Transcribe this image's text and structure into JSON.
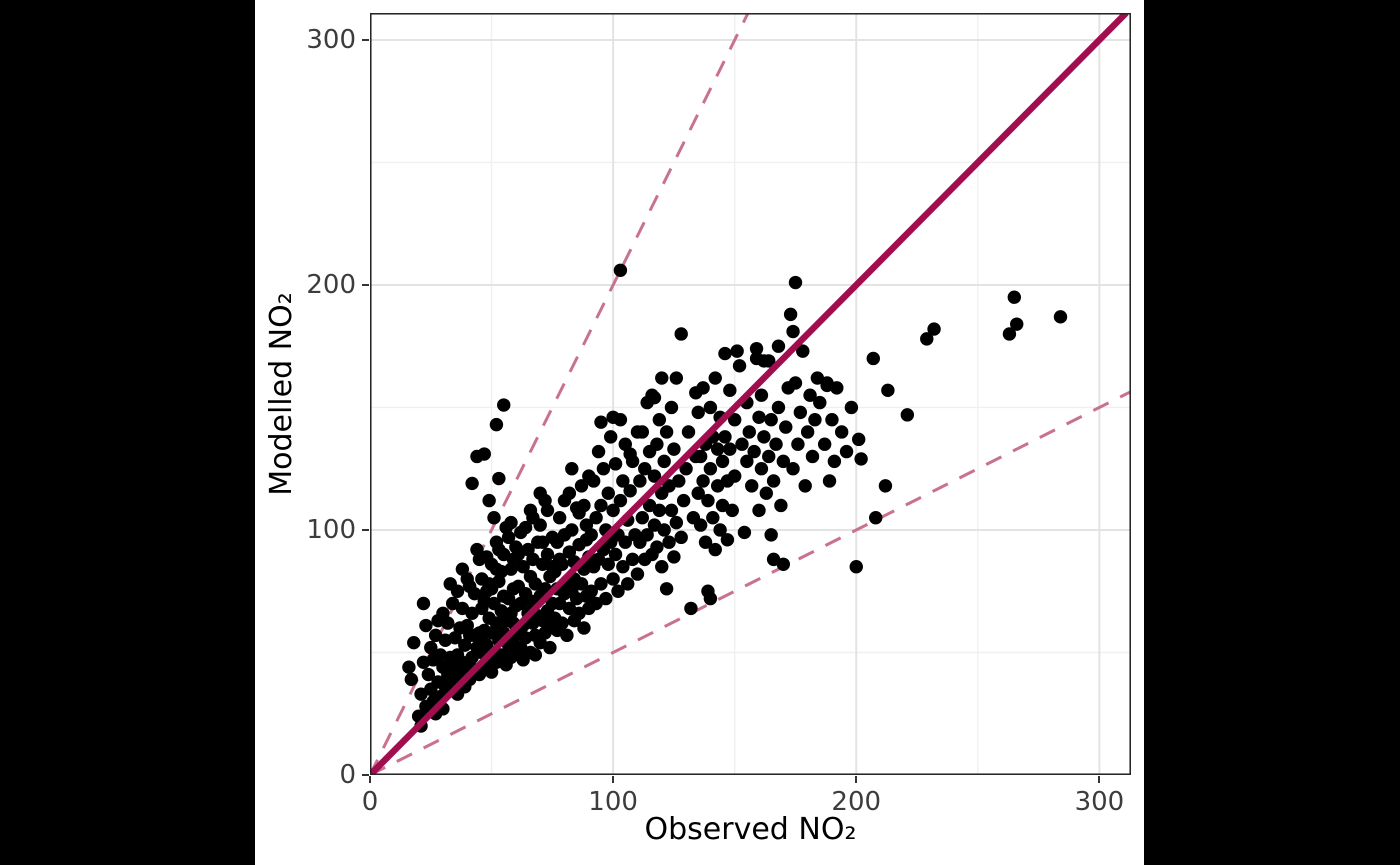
{
  "chart_data": {
    "type": "scatter",
    "title": "",
    "xlabel": "Observed NO₂",
    "ylabel": "Modelled NO₂",
    "xlim": [
      0,
      313
    ],
    "ylim": [
      0,
      311
    ],
    "x_ticks": [
      "0",
      "100",
      "200",
      "300"
    ],
    "x_tick_values": [
      0,
      100,
      200,
      300
    ],
    "y_ticks": [
      "0",
      "100",
      "200",
      "300"
    ],
    "y_tick_values": [
      0,
      100,
      200,
      300
    ],
    "minor_grid_values": [
      50,
      150,
      250
    ],
    "grid": true,
    "legend": "none",
    "point_color": "#000000",
    "point_radius": 6.7,
    "reference_lines": [
      {
        "name": "two-to-one",
        "slope": 2,
        "style": "dashed",
        "color": "#C9728F",
        "width": 3,
        "dash": [
          17,
          13
        ]
      },
      {
        "name": "one-to-two",
        "slope": 0.5,
        "style": "dashed",
        "color": "#C9728F",
        "width": 3,
        "dash": [
          17,
          13
        ]
      },
      {
        "name": "one-to-one",
        "slope": 1,
        "style": "solid",
        "color": "#A10D4F",
        "width": 6.5,
        "dash": null
      }
    ],
    "points": [
      [
        265,
        195
      ],
      [
        266,
        184
      ],
      [
        263,
        180
      ],
      [
        284,
        187
      ],
      [
        232,
        182
      ],
      [
        229,
        178
      ],
      [
        207,
        170
      ],
      [
        213,
        157
      ],
      [
        221,
        147
      ],
      [
        201,
        137
      ],
      [
        202,
        129
      ],
      [
        212,
        118
      ],
      [
        208,
        105
      ],
      [
        200,
        85
      ],
      [
        175,
        201
      ],
      [
        173,
        188
      ],
      [
        174,
        181
      ],
      [
        128,
        180
      ],
      [
        103,
        206
      ],
      [
        120,
        162
      ],
      [
        117,
        154
      ],
      [
        126,
        162
      ],
      [
        134,
        156
      ],
      [
        151,
        173
      ],
      [
        159,
        174
      ],
      [
        152,
        167
      ],
      [
        162,
        169
      ],
      [
        178,
        173
      ],
      [
        184,
        162
      ],
      [
        188,
        159
      ],
      [
        55,
        151
      ],
      [
        52,
        143
      ],
      [
        44,
        130
      ],
      [
        42,
        119
      ],
      [
        53,
        121
      ],
      [
        47,
        131
      ],
      [
        49,
        112
      ],
      [
        16,
        44
      ],
      [
        17,
        39
      ],
      [
        18,
        54
      ],
      [
        20,
        24
      ],
      [
        21,
        20
      ],
      [
        21,
        33
      ],
      [
        22,
        46
      ],
      [
        22,
        70
      ],
      [
        23,
        28
      ],
      [
        23,
        61
      ],
      [
        24,
        26
      ],
      [
        24,
        41
      ],
      [
        25,
        35
      ],
      [
        25,
        52
      ],
      [
        26,
        30
      ],
      [
        26,
        47
      ],
      [
        27,
        25
      ],
      [
        27,
        57
      ],
      [
        28,
        38
      ],
      [
        28,
        63
      ],
      [
        29,
        32
      ],
      [
        29,
        49
      ],
      [
        30,
        27
      ],
      [
        30,
        44
      ],
      [
        30,
        66
      ],
      [
        31,
        36
      ],
      [
        31,
        55
      ],
      [
        32,
        41
      ],
      [
        32,
        62
      ],
      [
        33,
        35
      ],
      [
        33,
        48
      ],
      [
        33,
        78
      ],
      [
        34,
        44
      ],
      [
        34,
        70
      ],
      [
        35,
        38
      ],
      [
        35,
        56
      ],
      [
        36,
        33
      ],
      [
        36,
        49
      ],
      [
        36,
        75
      ],
      [
        37,
        42
      ],
      [
        37,
        60
      ],
      [
        38,
        46
      ],
      [
        38,
        68
      ],
      [
        38,
        84
      ],
      [
        39,
        36
      ],
      [
        39,
        53
      ],
      [
        40,
        44
      ],
      [
        40,
        61
      ],
      [
        40,
        80
      ],
      [
        41,
        39
      ],
      [
        41,
        57
      ],
      [
        41,
        77
      ],
      [
        42,
        48
      ],
      [
        42,
        66
      ],
      [
        43,
        43
      ],
      [
        43,
        57
      ],
      [
        43,
        74
      ],
      [
        44,
        52
      ],
      [
        44,
        92
      ],
      [
        45,
        41
      ],
      [
        45,
        58
      ],
      [
        45,
        88
      ],
      [
        46,
        50
      ],
      [
        46,
        57
      ],
      [
        46,
        68
      ],
      [
        46,
        80
      ],
      [
        47,
        44
      ],
      [
        47,
        59
      ],
      [
        47,
        71
      ],
      [
        48,
        53
      ],
      [
        48,
        75
      ],
      [
        48,
        89
      ],
      [
        49,
        47
      ],
      [
        49,
        64
      ],
      [
        49,
        78
      ],
      [
        50,
        42
      ],
      [
        50,
        58
      ],
      [
        50,
        76
      ],
      [
        50,
        86
      ],
      [
        51,
        50
      ],
      [
        51,
        70
      ],
      [
        51,
        105
      ],
      [
        52,
        46
      ],
      [
        52,
        62
      ],
      [
        52,
        84
      ],
      [
        52,
        95
      ],
      [
        53,
        55
      ],
      [
        53,
        79
      ],
      [
        53,
        92
      ],
      [
        54,
        49
      ],
      [
        54,
        67
      ],
      [
        54,
        83
      ],
      [
        55,
        58
      ],
      [
        55,
        73
      ],
      [
        55,
        90
      ],
      [
        56,
        45
      ],
      [
        56,
        63
      ],
      [
        56,
        101
      ],
      [
        57,
        53
      ],
      [
        57,
        72
      ],
      [
        57,
        97
      ],
      [
        58,
        48
      ],
      [
        58,
        66
      ],
      [
        58,
        84
      ],
      [
        58,
        103
      ],
      [
        59,
        56
      ],
      [
        59,
        62
      ],
      [
        59,
        76
      ],
      [
        59,
        88
      ],
      [
        60,
        51
      ],
      [
        60,
        69
      ],
      [
        60,
        93
      ],
      [
        61,
        58
      ],
      [
        61,
        77
      ],
      [
        61,
        90
      ],
      [
        62,
        52
      ],
      [
        62,
        70
      ],
      [
        62,
        99
      ],
      [
        63,
        47
      ],
      [
        63,
        61
      ],
      [
        63,
        85
      ],
      [
        64,
        56
      ],
      [
        64,
        74
      ],
      [
        64,
        101
      ],
      [
        65,
        66
      ],
      [
        65,
        92
      ],
      [
        66,
        50
      ],
      [
        66,
        71
      ],
      [
        66,
        81
      ],
      [
        66,
        108
      ],
      [
        67,
        62
      ],
      [
        67,
        88
      ],
      [
        67,
        105
      ],
      [
        68,
        49
      ],
      [
        68,
        57
      ],
      [
        68,
        78
      ],
      [
        69,
        65
      ],
      [
        69,
        95
      ],
      [
        70,
        54
      ],
      [
        70,
        73
      ],
      [
        70,
        102
      ],
      [
        70,
        115
      ],
      [
        71,
        63
      ],
      [
        71,
        86
      ],
      [
        71,
        95
      ],
      [
        72,
        58
      ],
      [
        72,
        76
      ],
      [
        72,
        112
      ],
      [
        73,
        67
      ],
      [
        73,
        90
      ],
      [
        73,
        108
      ],
      [
        74,
        52
      ],
      [
        74,
        61
      ],
      [
        74,
        81
      ],
      [
        75,
        70
      ],
      [
        75,
        85
      ],
      [
        75,
        97
      ],
      [
        76,
        64
      ],
      [
        76,
        83
      ],
      [
        77,
        59
      ],
      [
        77,
        76
      ],
      [
        77,
        95
      ],
      [
        78,
        70
      ],
      [
        78,
        88
      ],
      [
        78,
        105
      ],
      [
        79,
        62
      ],
      [
        79,
        86
      ],
      [
        80,
        74
      ],
      [
        80,
        98
      ],
      [
        80,
        112
      ],
      [
        81,
        57
      ],
      [
        81,
        79
      ],
      [
        82,
        68
      ],
      [
        82,
        91
      ],
      [
        82,
        115
      ],
      [
        83,
        75
      ],
      [
        83,
        100
      ],
      [
        83,
        125
      ],
      [
        84,
        63
      ],
      [
        84,
        80
      ],
      [
        84,
        87
      ],
      [
        85,
        72
      ],
      [
        85,
        109
      ],
      [
        86,
        66
      ],
      [
        86,
        94
      ],
      [
        86,
        107
      ],
      [
        87,
        78
      ],
      [
        87,
        118
      ],
      [
        88,
        60
      ],
      [
        88,
        84
      ],
      [
        88,
        110
      ],
      [
        89,
        73
      ],
      [
        89,
        96
      ],
      [
        89,
        102
      ],
      [
        90,
        68
      ],
      [
        90,
        89
      ],
      [
        90,
        122
      ],
      [
        91,
        75
      ],
      [
        91,
        98
      ],
      [
        92,
        85
      ],
      [
        92,
        120
      ],
      [
        93,
        70
      ],
      [
        93,
        105
      ],
      [
        94,
        88
      ],
      [
        94,
        132
      ],
      [
        95,
        78
      ],
      [
        95,
        110
      ],
      [
        95,
        144
      ],
      [
        96,
        92
      ],
      [
        96,
        125
      ],
      [
        97,
        72
      ],
      [
        97,
        100
      ],
      [
        98,
        86
      ],
      [
        98,
        115
      ],
      [
        99,
        95
      ],
      [
        99,
        138
      ],
      [
        100,
        80
      ],
      [
        100,
        108
      ],
      [
        100,
        146
      ],
      [
        101,
        90
      ],
      [
        101,
        127
      ],
      [
        102,
        75
      ],
      [
        102,
        98
      ],
      [
        103,
        112
      ],
      [
        103,
        145
      ],
      [
        104,
        85
      ],
      [
        104,
        120
      ],
      [
        105,
        95
      ],
      [
        105,
        135
      ],
      [
        106,
        78
      ],
      [
        106,
        104
      ],
      [
        107,
        116
      ],
      [
        107,
        131
      ],
      [
        108,
        88
      ],
      [
        108,
        128
      ],
      [
        109,
        98
      ],
      [
        110,
        82
      ],
      [
        110,
        140
      ],
      [
        111,
        95
      ],
      [
        111,
        120
      ],
      [
        112,
        105
      ],
      [
        112,
        140
      ],
      [
        113,
        88
      ],
      [
        113,
        125
      ],
      [
        114,
        98
      ],
      [
        114,
        152
      ],
      [
        115,
        110
      ],
      [
        115,
        132
      ],
      [
        116,
        90
      ],
      [
        116,
        155
      ],
      [
        117,
        102
      ],
      [
        117,
        122
      ],
      [
        118,
        93
      ],
      [
        118,
        135
      ],
      [
        119,
        108
      ],
      [
        119,
        145
      ],
      [
        120,
        85
      ],
      [
        120,
        115
      ],
      [
        121,
        100
      ],
      [
        121,
        128
      ],
      [
        122,
        76
      ],
      [
        122,
        140
      ],
      [
        123,
        95
      ],
      [
        123,
        118
      ],
      [
        124,
        108
      ],
      [
        124,
        150
      ],
      [
        125,
        89
      ],
      [
        125,
        133
      ],
      [
        126,
        103
      ],
      [
        127,
        120
      ],
      [
        128,
        97
      ],
      [
        129,
        112
      ],
      [
        130,
        125
      ],
      [
        131,
        140
      ],
      [
        132,
        68
      ],
      [
        133,
        105
      ],
      [
        134,
        130
      ],
      [
        135,
        115
      ],
      [
        135,
        148
      ],
      [
        136,
        102
      ],
      [
        136,
        130
      ],
      [
        137,
        120
      ],
      [
        137,
        158
      ],
      [
        138,
        95
      ],
      [
        138,
        135
      ],
      [
        139,
        75
      ],
      [
        139,
        112
      ],
      [
        140,
        72
      ],
      [
        140,
        125
      ],
      [
        140,
        150
      ],
      [
        141,
        105
      ],
      [
        141,
        138
      ],
      [
        142,
        92
      ],
      [
        142,
        162
      ],
      [
        143,
        118
      ],
      [
        143,
        133
      ],
      [
        144,
        100
      ],
      [
        144,
        146
      ],
      [
        145,
        110
      ],
      [
        145,
        128
      ],
      [
        146,
        138
      ],
      [
        146,
        172
      ],
      [
        147,
        96
      ],
      [
        147,
        120
      ],
      [
        148,
        133
      ],
      [
        148,
        157
      ],
      [
        149,
        108
      ],
      [
        150,
        122
      ],
      [
        150,
        145
      ],
      [
        153,
        135
      ],
      [
        154,
        99
      ],
      [
        155,
        128
      ],
      [
        155,
        152
      ],
      [
        156,
        140
      ],
      [
        157,
        118
      ],
      [
        158,
        132
      ],
      [
        159,
        170
      ],
      [
        160,
        108
      ],
      [
        160,
        146
      ],
      [
        161,
        125
      ],
      [
        161,
        155
      ],
      [
        162,
        138
      ],
      [
        163,
        115
      ],
      [
        164,
        130
      ],
      [
        164,
        169
      ],
      [
        165,
        98
      ],
      [
        165,
        145
      ],
      [
        166,
        88
      ],
      [
        166,
        120
      ],
      [
        167,
        135
      ],
      [
        168,
        150
      ],
      [
        168,
        175
      ],
      [
        169,
        110
      ],
      [
        170,
        86
      ],
      [
        170,
        128
      ],
      [
        171,
        142
      ],
      [
        172,
        158
      ],
      [
        174,
        125
      ],
      [
        175,
        160
      ],
      [
        176,
        135
      ],
      [
        177,
        148
      ],
      [
        179,
        118
      ],
      [
        180,
        140
      ],
      [
        181,
        155
      ],
      [
        182,
        130
      ],
      [
        183,
        145
      ],
      [
        185,
        152
      ],
      [
        187,
        135
      ],
      [
        188,
        160
      ],
      [
        189,
        120
      ],
      [
        190,
        145
      ],
      [
        191,
        128
      ],
      [
        192,
        158
      ],
      [
        194,
        140
      ],
      [
        196,
        132
      ],
      [
        198,
        150
      ]
    ]
  },
  "colors": {
    "page_bg": "#000000",
    "figure_bg": "#ffffff",
    "grid_major": "#e3e3e3",
    "grid_minor": "#f0f0f0",
    "panel_border": "#262626",
    "tick_mark": "#333333",
    "tick_label": "#3c3c3c",
    "axis_title": "#000000",
    "accent_solid_line": "#A10D4F",
    "accent_dashed_line": "#C9728F"
  }
}
